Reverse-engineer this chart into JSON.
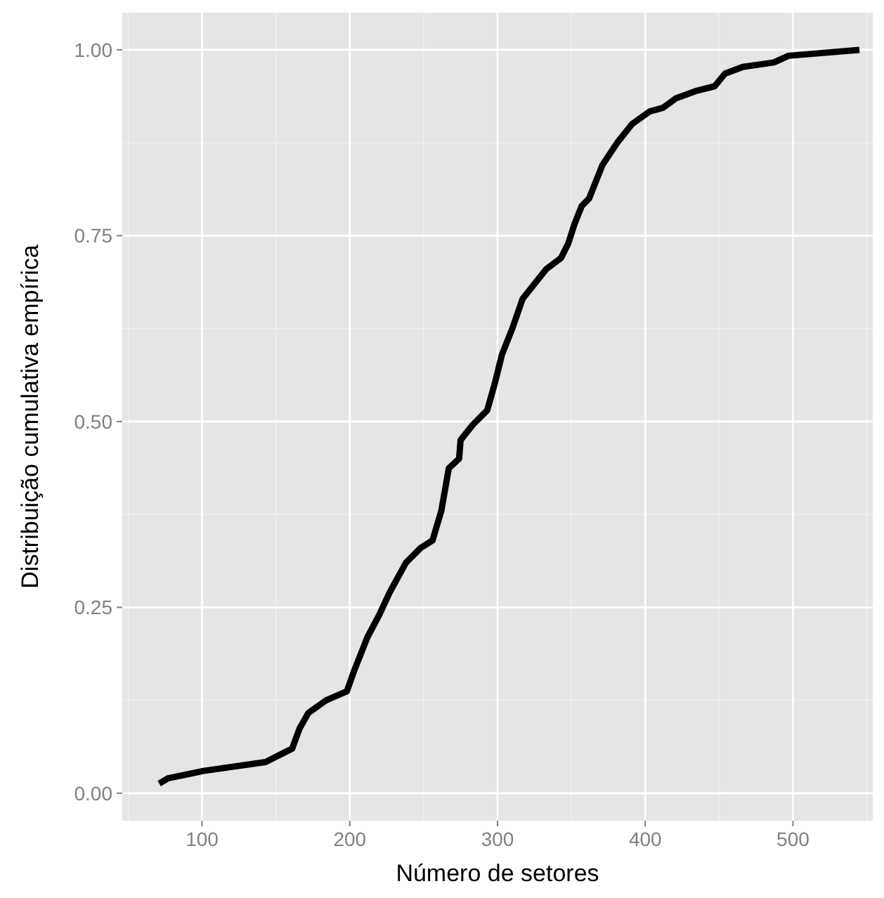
{
  "chart_data": {
    "type": "line",
    "xlabel": "Número de setores",
    "ylabel": "Distribuição cumulativa empírica",
    "xlim": [
      46,
      554
    ],
    "ylim": [
      -0.037,
      1.05
    ],
    "xticks": [
      100,
      200,
      300,
      400,
      500
    ],
    "yticks": [
      {
        "value": 0,
        "label": "0.00"
      },
      {
        "value": 0.25,
        "label": "0.25"
      },
      {
        "value": 0.5,
        "label": "0.50"
      },
      {
        "value": 0.75,
        "label": "0.75"
      },
      {
        "value": 1,
        "label": "1.00"
      }
    ],
    "grid": true,
    "marker": "none",
    "line_style": "solid",
    "series": [
      {
        "color": "#000000",
        "x": [
          71,
          77,
          101,
          143,
          161,
          166,
          172,
          184,
          198,
          203,
          212,
          220,
          227,
          238,
          248,
          256,
          262,
          267,
          274,
          275,
          283,
          293,
          298,
          303,
          310,
          317,
          333,
          343,
          348,
          352,
          357,
          362,
          365,
          371,
          381,
          391,
          403,
          412,
          421,
          435,
          447,
          454,
          466,
          487,
          497,
          545
        ],
        "values": [
          0.013,
          0.02,
          0.03,
          0.042,
          0.06,
          0.087,
          0.108,
          0.125,
          0.137,
          0.165,
          0.21,
          0.24,
          0.27,
          0.31,
          0.33,
          0.34,
          0.38,
          0.437,
          0.45,
          0.475,
          0.495,
          0.515,
          0.55,
          0.59,
          0.625,
          0.665,
          0.705,
          0.72,
          0.74,
          0.765,
          0.79,
          0.8,
          0.815,
          0.845,
          0.875,
          0.9,
          0.917,
          0.922,
          0.935,
          0.945,
          0.951,
          0.968,
          0.977,
          0.983,
          0.992,
          1.0
        ]
      }
    ]
  }
}
